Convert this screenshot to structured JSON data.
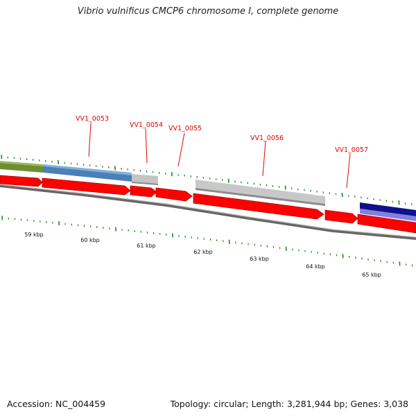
{
  "title": "Vibrio vulnificus CMCP6 chromosome I, complete genome",
  "footer": {
    "accession": "Accession: NC_004459",
    "topology": "Topology: circular; Length: 3,281,944 bp; Genes: 3,038"
  },
  "colors": {
    "cds_red": "#ff0000",
    "tick_green": "#1a8a1a",
    "label_red": "#e00000",
    "backbone_gray": "#888888",
    "feature_olive": "#7b9a3b",
    "feature_blue": "#4f87bd",
    "feature_gray": "#c8c8c8",
    "feature_navy": "#10108a",
    "feature_violet": "#8080e0"
  },
  "kbp_labels": [
    "59 kbp",
    "60 kbp",
    "61 kbp",
    "62 kbp",
    "63 kbp",
    "64 kbp",
    "65 kbp"
  ],
  "gene_labels": [
    "VV1_0053",
    "VV1_0054",
    "VV1_0055",
    "VV1_0056",
    "VV1_0057"
  ]
}
